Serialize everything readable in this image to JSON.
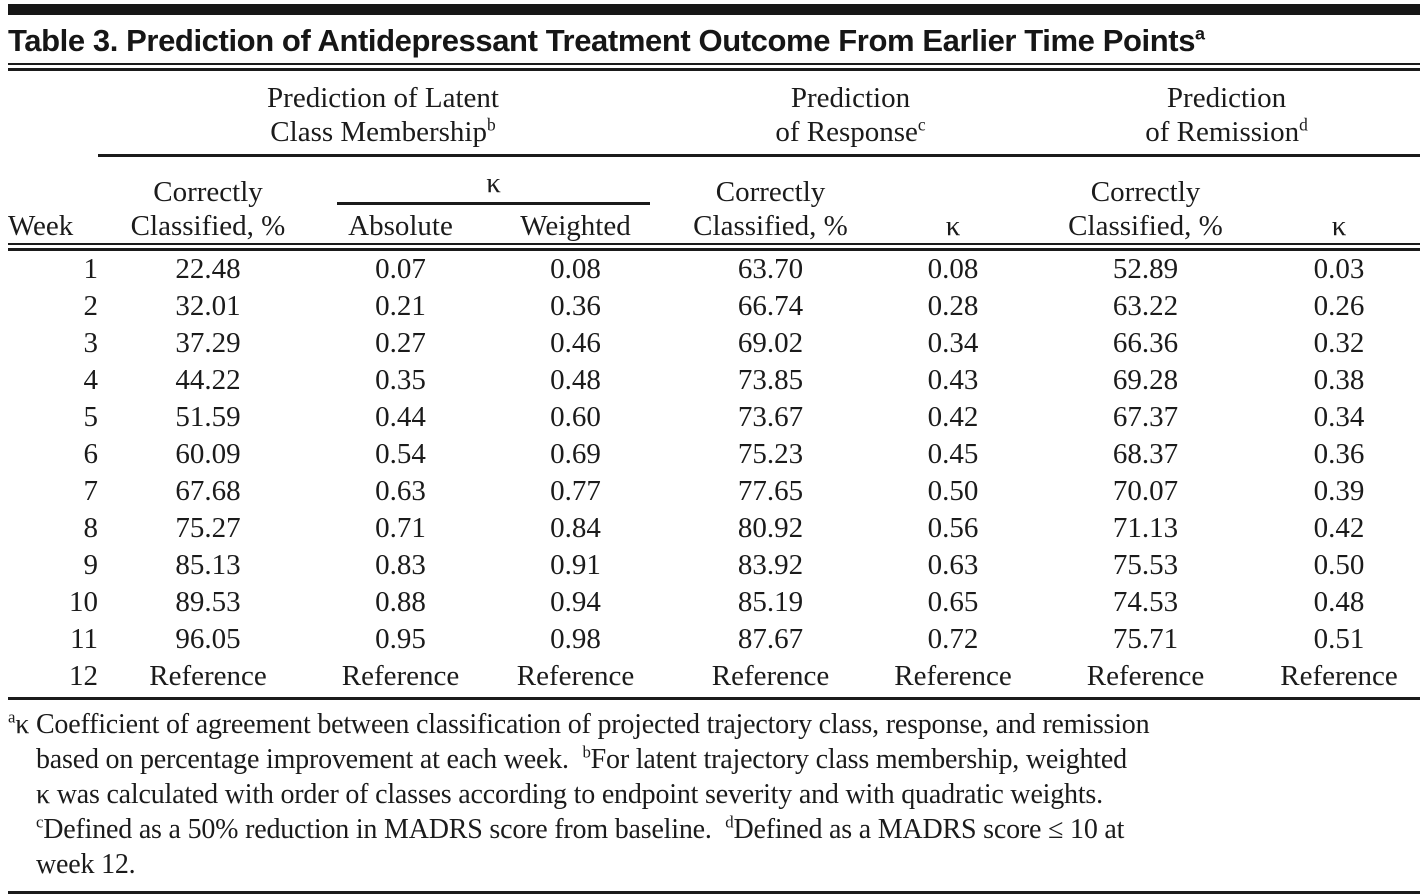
{
  "title": {
    "text": "Table 3. Prediction of Antidepressant Treatment Outcome From Earlier Time Points",
    "superscript": "a"
  },
  "table": {
    "week_header": "Week",
    "cc_lines": [
      "Correctly",
      "Classified, %"
    ],
    "kappa_header": "κ",
    "kappa_sub_headers": [
      "Absolute",
      "Weighted"
    ],
    "col_groups": [
      {
        "label_lines": [
          "Prediction of Latent",
          "Class Membership"
        ],
        "superscript": "b"
      },
      {
        "label_lines": [
          "Prediction",
          "of Response"
        ],
        "superscript": "c"
      },
      {
        "label_lines": [
          "Prediction",
          "of Remission"
        ],
        "superscript": "d"
      }
    ],
    "rows": [
      [
        "1",
        "22.48",
        "0.07",
        "0.08",
        "63.70",
        "0.08",
        "52.89",
        "0.03"
      ],
      [
        "2",
        "32.01",
        "0.21",
        "0.36",
        "66.74",
        "0.28",
        "63.22",
        "0.26"
      ],
      [
        "3",
        "37.29",
        "0.27",
        "0.46",
        "69.02",
        "0.34",
        "66.36",
        "0.32"
      ],
      [
        "4",
        "44.22",
        "0.35",
        "0.48",
        "73.85",
        "0.43",
        "69.28",
        "0.38"
      ],
      [
        "5",
        "51.59",
        "0.44",
        "0.60",
        "73.67",
        "0.42",
        "67.37",
        "0.34"
      ],
      [
        "6",
        "60.09",
        "0.54",
        "0.69",
        "75.23",
        "0.45",
        "68.37",
        "0.36"
      ],
      [
        "7",
        "67.68",
        "0.63",
        "0.77",
        "77.65",
        "0.50",
        "70.07",
        "0.39"
      ],
      [
        "8",
        "75.27",
        "0.71",
        "0.84",
        "80.92",
        "0.56",
        "71.13",
        "0.42"
      ],
      [
        "9",
        "85.13",
        "0.83",
        "0.91",
        "83.92",
        "0.63",
        "75.53",
        "0.50"
      ],
      [
        "10",
        "89.53",
        "0.88",
        "0.94",
        "85.19",
        "0.65",
        "74.53",
        "0.48"
      ],
      [
        "11",
        "96.05",
        "0.95",
        "0.98",
        "87.67",
        "0.72",
        "75.71",
        "0.51"
      ],
      [
        "12",
        "Reference",
        "Reference",
        "Reference",
        "Reference",
        "Reference",
        "Reference",
        "Reference"
      ]
    ]
  },
  "footnotes": {
    "lines": [
      [
        {
          "sup": "a"
        },
        {
          "text": "κ Coefficient of agreement between classification of projected trajectory class, response, and remission"
        }
      ],
      [
        {
          "text": "based on percentage improvement at each week.  "
        },
        {
          "sup": "b"
        },
        {
          "text": "For latent trajectory class membership, weighted"
        }
      ],
      [
        {
          "text": "κ was calculated with order of classes according to endpoint severity and with quadratic weights."
        }
      ],
      [
        {
          "sup": "c"
        },
        {
          "text": "Defined as a 50% reduction in MADRS score from baseline.  "
        },
        {
          "sup": "d"
        },
        {
          "text": "Defined as a MADRS score ≤ 10 at"
        }
      ],
      [
        {
          "text": "week 12."
        }
      ]
    ]
  },
  "colors": {
    "text": "#1b1b1b",
    "rule": "#1b1b1b",
    "background": "#ffffff"
  }
}
